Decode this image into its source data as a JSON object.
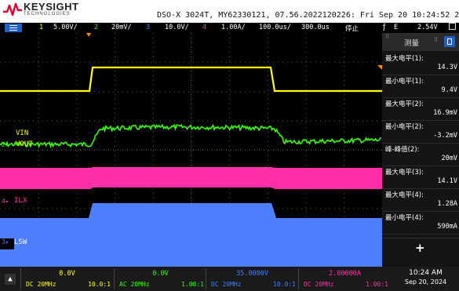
{
  "brand": {
    "name": "KEYSIGHT",
    "subtitle": "TECHNOLOGIES",
    "logo_icon": "keysight-wave-icon",
    "logo_color": "#e4002b"
  },
  "title_bar": "DSO-X 3024T, MY62330121, 07.56.2022120226: Fri Sep 20 10:24:52 2024",
  "settings": {
    "menu_icon": "hamburger-menu-icon",
    "ch1_num": "1",
    "ch1_scale": "5.00V/",
    "ch2_num": "2",
    "ch2_scale": "20mV/",
    "ch3_num": "3",
    "ch3_scale": "10.0V/",
    "ch4_num": "4",
    "ch4_scale": "1.00A/",
    "timebase": "100.0us/",
    "delay": "300.0us",
    "run_state": "停止",
    "trigger_icon": "trigger-edge-icon",
    "trigger_source": "E",
    "trigger_level": "2.54V"
  },
  "colors": {
    "ch1": "#ffff00",
    "ch2": "#33ff00",
    "ch3": "#3f7fff",
    "ch4": "#ff2fa8",
    "ch3_trace": "#4d7fff",
    "grid": "#5a5a5a"
  },
  "waveform_labels": {
    "ch2": "VIN",
    "ch3": "VOUT",
    "ch4": "ILX",
    "ch1": "LSW"
  },
  "measurements": {
    "panel_title": "测量",
    "items": [
      {
        "label": "最大电平(1):",
        "value": "14.3V"
      },
      {
        "label": "最小电平(1):",
        "value": "9.4V"
      },
      {
        "label": "最大电平(2):",
        "value": "16.9mV"
      },
      {
        "label": "最小电平(2):",
        "value": "-3.2mV"
      },
      {
        "label": "峰-峰值(2):",
        "value": "20mV"
      },
      {
        "label": "最大电平(3):",
        "value": "14.1V"
      },
      {
        "label": "最大电平(4):",
        "value": "1.28A"
      },
      {
        "label": "最小电平(4):",
        "value": "590mA"
      }
    ],
    "add_label": "+"
  },
  "footer": {
    "channels": [
      {
        "offset": "0.0V",
        "coupling": "DC 20MHz",
        "ratio": "10.0:1"
      },
      {
        "offset": "0.0V",
        "coupling": "AC 20MHz",
        "ratio": "1.00:1"
      },
      {
        "offset": "35.0000V",
        "coupling": "DC 20MHz",
        "ratio": "10.0:1"
      },
      {
        "offset": "2.00000A",
        "coupling": "DC 20MHz",
        "ratio": "1.00:1"
      }
    ],
    "time": "10:24 AM",
    "date": "Sep 20, 2024"
  }
}
